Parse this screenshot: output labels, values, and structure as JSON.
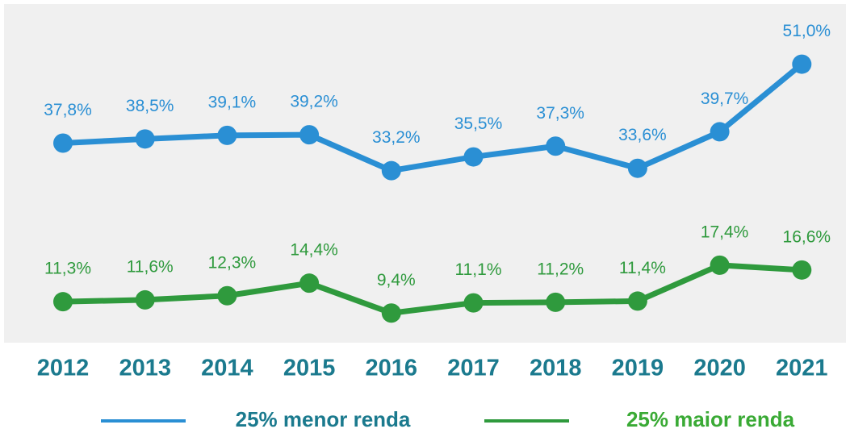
{
  "chart_data": {
    "type": "line",
    "x": [
      "2012",
      "2013",
      "2014",
      "2015",
      "2016",
      "2017",
      "2018",
      "2019",
      "2020",
      "2021"
    ],
    "series": [
      {
        "name": "25% menor renda",
        "color": "#2a8fd4",
        "values": [
          37.8,
          38.5,
          39.1,
          39.2,
          33.2,
          35.5,
          37.3,
          33.6,
          39.7,
          51.0
        ],
        "value_labels": [
          "37,8%",
          "38,5%",
          "39,1%",
          "39,2%",
          "33,2%",
          "35,5%",
          "37,3%",
          "33,6%",
          "39,7%",
          "51,0%"
        ]
      },
      {
        "name": "25% maior renda",
        "color": "#2f9a3d",
        "values": [
          11.3,
          11.6,
          12.3,
          14.4,
          9.4,
          11.1,
          11.2,
          11.4,
          17.4,
          16.6
        ],
        "value_labels": [
          "11,3%",
          "11,6%",
          "12,3%",
          "14,4%",
          "9,4%",
          "11,1%",
          "11,2%",
          "11,4%",
          "17,4%",
          "16,6%"
        ]
      }
    ]
  }
}
